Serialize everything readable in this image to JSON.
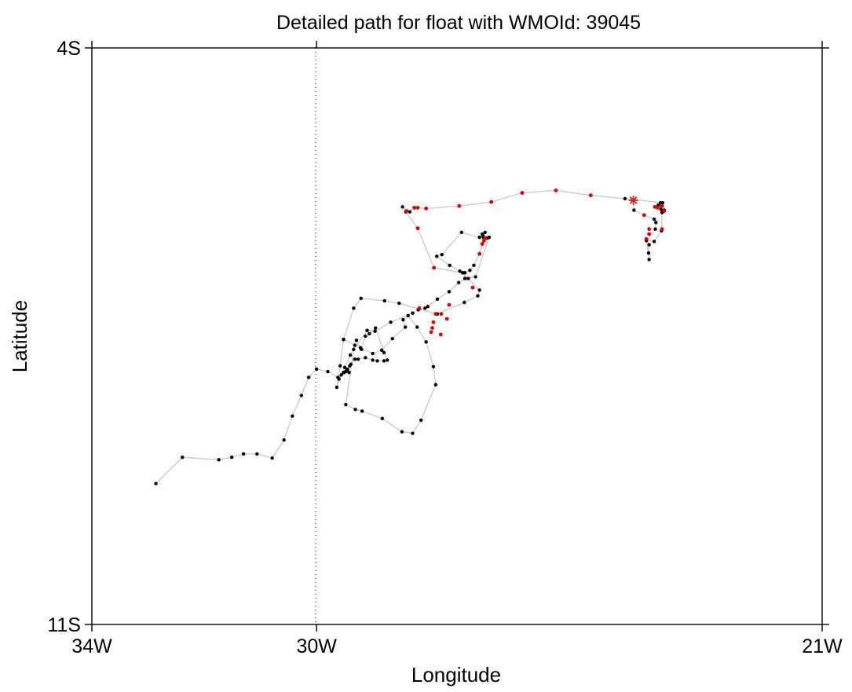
{
  "chart_data": {
    "type": "scatter",
    "title": "Detailed path for float with WMOId: 39045",
    "xlabel": "Longitude",
    "ylabel": "Latitude",
    "xlim": [
      -34,
      -21
    ],
    "ylim": [
      -11,
      -4
    ],
    "x_ticks": [
      {
        "value": -34,
        "label": "34W"
      },
      {
        "value": -30,
        "label": "30W"
      },
      {
        "value": -21,
        "label": "21W"
      }
    ],
    "y_ticks": [
      {
        "value": -4,
        "label": "4S"
      },
      {
        "value": -11,
        "label": "11S"
      }
    ],
    "reference_line": {
      "x": -30,
      "style": "dotted"
    },
    "colors": {
      "path": "#c8c8c8",
      "black_points": "#000000",
      "red_points": "#e00000",
      "start_marker": "#cc2222"
    },
    "start_marker": {
      "x": -24.36,
      "y": -5.85,
      "symbol": "asterisk"
    },
    "path": [
      [
        -24.36,
        -5.85
      ],
      [
        -24.35,
        -5.97
      ],
      [
        -24.17,
        -6.03
      ],
      [
        -23.99,
        -6.08
      ],
      [
        -23.96,
        -6.12
      ],
      [
        -23.97,
        -6.2
      ],
      [
        -24.13,
        -6.34
      ],
      [
        -24.08,
        -6.39
      ],
      [
        -24.09,
        -6.49
      ],
      [
        -24.08,
        -6.57
      ],
      [
        -24.13,
        -6.33
      ],
      [
        -23.99,
        -6.35
      ],
      [
        -23.86,
        -6.22
      ],
      [
        -23.85,
        -6.0
      ],
      [
        -23.88,
        -5.88
      ],
      [
        -23.92,
        -5.91
      ],
      [
        -23.87,
        -5.96
      ],
      [
        -23.81,
        -5.97
      ],
      [
        -23.85,
        -5.92
      ],
      [
        -23.81,
        -5.97
      ],
      [
        -23.84,
        -5.88
      ],
      [
        -24.51,
        -5.83
      ],
      [
        -25.12,
        -5.79
      ],
      [
        -25.74,
        -5.73
      ],
      [
        -26.34,
        -5.76
      ],
      [
        -26.89,
        -5.87
      ],
      [
        -27.46,
        -5.92
      ],
      [
        -28.05,
        -5.95
      ],
      [
        -28.2,
        -5.94
      ],
      [
        -28.26,
        -5.94
      ],
      [
        -28.34,
        -5.99
      ],
      [
        -28.4,
        -5.98
      ],
      [
        -28.47,
        -5.93
      ],
      [
        -28.41,
        -5.99
      ],
      [
        -28.2,
        -6.19
      ],
      [
        -27.91,
        -6.67
      ],
      [
        -27.4,
        -6.73
      ],
      [
        -27.36,
        -6.73
      ],
      [
        -27.27,
        -6.7
      ],
      [
        -27.2,
        -6.64
      ],
      [
        -27.1,
        -6.5
      ],
      [
        -27.05,
        -6.38
      ],
      [
        -27.02,
        -6.34
      ],
      [
        -27.0,
        -6.31
      ],
      [
        -26.97,
        -6.31
      ],
      [
        -27.03,
        -6.3
      ],
      [
        -27.05,
        -6.26
      ],
      [
        -27.04,
        -6.28
      ],
      [
        -27.0,
        -6.24
      ]
    ],
    "branch_path": [
      [
        -26.93,
        -6.3
      ],
      [
        -27.17,
        -6.78
      ],
      [
        -27.36,
        -6.8
      ],
      [
        -27.47,
        -6.85
      ],
      [
        -27.64,
        -6.96
      ],
      [
        -27.85,
        -7.05
      ],
      [
        -28.02,
        -7.14
      ],
      [
        -28.07,
        -7.16
      ],
      [
        -28.19,
        -7.18
      ],
      [
        -28.29,
        -7.22
      ],
      [
        -28.68,
        -7.33
      ],
      [
        -28.96,
        -7.44
      ],
      [
        -29.1,
        -7.43
      ],
      [
        -29.34,
        -7.66
      ],
      [
        -29.48,
        -8.33
      ],
      [
        -29.31,
        -8.39
      ],
      [
        -29.19,
        -8.41
      ],
      [
        -28.83,
        -8.5
      ],
      [
        -28.48,
        -8.66
      ],
      [
        -28.29,
        -8.68
      ],
      [
        -28.14,
        -8.52
      ],
      [
        -27.88,
        -8.09
      ],
      [
        -27.92,
        -7.87
      ],
      [
        -28.05,
        -7.57
      ],
      [
        -28.21,
        -7.39
      ],
      [
        -28.37,
        -7.25
      ],
      [
        -28.46,
        -7.3
      ],
      [
        -28.42,
        -7.39
      ],
      [
        -28.65,
        -7.53
      ],
      [
        -28.84,
        -7.67
      ],
      [
        -29.0,
        -7.71
      ],
      [
        -29.22,
        -7.64
      ],
      [
        -29.52,
        -7.54
      ],
      [
        -29.34,
        -7.16
      ],
      [
        -29.21,
        -7.04
      ],
      [
        -28.79,
        -7.07
      ],
      [
        -28.53,
        -7.1
      ],
      [
        -28.18,
        -7.17
      ],
      [
        -27.85,
        -7.23
      ],
      [
        -27.37,
        -7.09
      ],
      [
        -27.13,
        -7.01
      ],
      [
        -27.1,
        -6.94
      ],
      [
        -27.3,
        -6.8
      ],
      [
        -27.45,
        -6.71
      ],
      [
        -27.63,
        -6.64
      ],
      [
        -27.86,
        -6.53
      ],
      [
        -27.77,
        -6.51
      ],
      [
        -27.42,
        -6.24
      ],
      [
        -27.1,
        -6.3
      ],
      [
        -26.93,
        -6.3
      ]
    ],
    "tail_path": [
      [
        -29.52,
        -7.54
      ],
      [
        -29.58,
        -7.86
      ],
      [
        -29.64,
        -8.12
      ],
      [
        -29.6,
        -8.02
      ],
      [
        -29.51,
        -7.94
      ],
      [
        -29.48,
        -7.93
      ],
      [
        -29.47,
        -7.92
      ],
      [
        -29.42,
        -7.94
      ],
      [
        -29.46,
        -7.92
      ],
      [
        -29.45,
        -7.9
      ],
      [
        -29.41,
        -7.86
      ],
      [
        -29.39,
        -7.84
      ],
      [
        -29.32,
        -7.78
      ],
      [
        -29.26,
        -7.78
      ],
      [
        -29.13,
        -7.76
      ],
      [
        -29.0,
        -7.79
      ],
      [
        -28.92,
        -7.8
      ],
      [
        -28.8,
        -7.8
      ],
      [
        -28.74,
        -7.79
      ],
      [
        -28.8,
        -7.7
      ],
      [
        -28.95,
        -7.4
      ],
      [
        -29.06,
        -7.47
      ],
      [
        -29.13,
        -7.5
      ],
      [
        -29.2,
        -7.66
      ],
      [
        -29.29,
        -7.55
      ],
      [
        -29.32,
        -7.61
      ],
      [
        -29.4,
        -7.73
      ],
      [
        -29.5,
        -7.88
      ],
      [
        -29.52,
        -7.94
      ],
      [
        -29.56,
        -7.97
      ],
      [
        -29.62,
        -8.0
      ],
      [
        -29.8,
        -7.93
      ],
      [
        -30.0,
        -7.9
      ],
      [
        -30.14,
        -8.0
      ],
      [
        -30.27,
        -8.22
      ],
      [
        -30.43,
        -8.47
      ],
      [
        -30.58,
        -8.76
      ],
      [
        -30.79,
        -8.98
      ],
      [
        -31.06,
        -8.93
      ],
      [
        -31.3,
        -8.93
      ],
      [
        -31.51,
        -8.97
      ],
      [
        -31.74,
        -9.0
      ],
      [
        -32.39,
        -8.97
      ],
      [
        -32.86,
        -9.29
      ]
    ],
    "red_points": [
      [
        -24.08,
        -6.2
      ],
      [
        -24.13,
        -6.32
      ],
      [
        -23.93,
        -5.94
      ],
      [
        -23.86,
        -5.92
      ],
      [
        -24.17,
        -6.03
      ],
      [
        -23.98,
        -5.93
      ],
      [
        -23.81,
        -5.98
      ],
      [
        -23.85,
        -6.2
      ],
      [
        -24.08,
        -6.26
      ],
      [
        -25.12,
        -5.79
      ],
      [
        -25.74,
        -5.73
      ],
      [
        -26.34,
        -5.76
      ],
      [
        -26.89,
        -5.87
      ],
      [
        -27.46,
        -5.92
      ],
      [
        -28.05,
        -5.95
      ],
      [
        -28.2,
        -5.94
      ],
      [
        -28.26,
        -5.94
      ],
      [
        -28.4,
        -5.98
      ],
      [
        -28.2,
        -6.19
      ],
      [
        -27.91,
        -6.67
      ],
      [
        -27.1,
        -6.5
      ],
      [
        -27.05,
        -6.38
      ],
      [
        -27.02,
        -6.34
      ],
      [
        -27.0,
        -6.31
      ],
      [
        -27.22,
        -6.91
      ],
      [
        -27.64,
        -7.12
      ],
      [
        -27.78,
        -7.23
      ],
      [
        -27.88,
        -7.23
      ],
      [
        -27.92,
        -7.33
      ],
      [
        -27.94,
        -7.4
      ],
      [
        -27.96,
        -7.45
      ],
      [
        -28.17,
        -7.16
      ],
      [
        -27.79,
        -7.48
      ],
      [
        -27.68,
        -7.29
      ]
    ]
  }
}
